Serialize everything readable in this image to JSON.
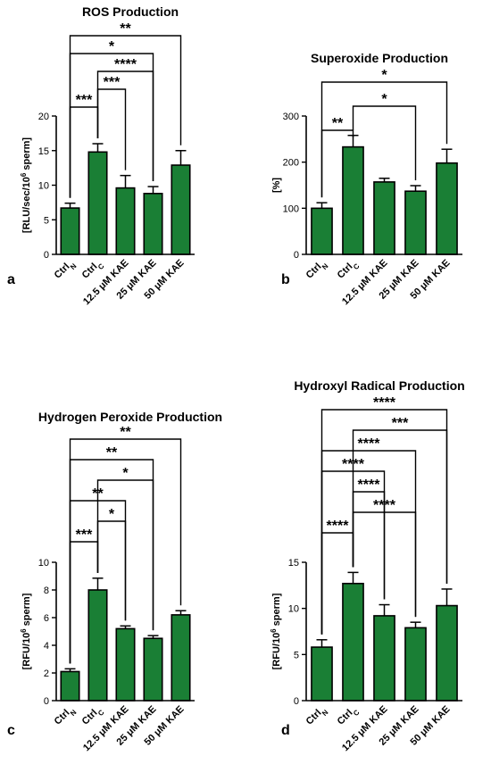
{
  "colors": {
    "bar": "#1a7f35",
    "axis": "#000000"
  },
  "chart_data": [
    {
      "panel_label": "a",
      "type": "bar",
      "title": "ROS Production",
      "ylabel": {
        "main": "[RLU/sec/10",
        "sup": "6",
        "tail": " sperm]"
      },
      "categories": [
        {
          "main": "Ctrl",
          "sub": "N"
        },
        {
          "main": "Ctrl",
          "sub": "C"
        },
        {
          "main": "12.5 μM KAE",
          "sub": ""
        },
        {
          "main": "25 μM KAE",
          "sub": ""
        },
        {
          "main": "50 μM KAE",
          "sub": ""
        }
      ],
      "values": [
        6.7,
        14.8,
        9.6,
        8.8,
        12.9
      ],
      "errors": [
        0.7,
        1.2,
        1.8,
        1.0,
        2.1
      ],
      "ylim": [
        0,
        20
      ],
      "yticks": [
        "0",
        "5",
        "10",
        "15",
        "20"
      ],
      "significance": [
        {
          "from": 0,
          "to": 1,
          "label": "***"
        },
        {
          "from": 1,
          "to": 2,
          "label": "***"
        },
        {
          "from": 1,
          "to": 3,
          "label": "****"
        },
        {
          "from": 0,
          "to": 3,
          "label": "*"
        },
        {
          "from": 0,
          "to": 4,
          "label": "**"
        }
      ]
    },
    {
      "panel_label": "b",
      "type": "bar",
      "title": "Superoxide Production",
      "ylabel": {
        "main": "[%]",
        "sup": "",
        "tail": ""
      },
      "categories": [
        {
          "main": "Ctrl",
          "sub": "N"
        },
        {
          "main": "Ctrl",
          "sub": "C"
        },
        {
          "main": "12.5 μM KAE",
          "sub": ""
        },
        {
          "main": "25 μM KAE",
          "sub": ""
        },
        {
          "main": "50 μM KAE",
          "sub": ""
        }
      ],
      "values": [
        100,
        233,
        157,
        137,
        198
      ],
      "errors": [
        12,
        25,
        8,
        12,
        30
      ],
      "ylim": [
        0,
        300
      ],
      "yticks": [
        "0",
        "100",
        "200",
        "300"
      ],
      "significance": [
        {
          "from": 0,
          "to": 1,
          "label": "**"
        },
        {
          "from": 1,
          "to": 3,
          "label": "*"
        },
        {
          "from": 0,
          "to": 4,
          "label": "*"
        }
      ]
    },
    {
      "panel_label": "c",
      "type": "bar",
      "title": "Hydrogen Peroxide Production",
      "ylabel": {
        "main": "[RFU/10",
        "sup": "6",
        "tail": " sperm]"
      },
      "categories": [
        {
          "main": "Ctrl",
          "sub": "N"
        },
        {
          "main": "Ctrl",
          "sub": "C"
        },
        {
          "main": "12.5 μM KAE",
          "sub": ""
        },
        {
          "main": "25 μM KAE",
          "sub": ""
        },
        {
          "main": "50 μM KAE",
          "sub": ""
        }
      ],
      "values": [
        2.1,
        8.0,
        5.2,
        4.5,
        6.2
      ],
      "errors": [
        0.2,
        0.85,
        0.2,
        0.2,
        0.3
      ],
      "ylim": [
        0,
        10
      ],
      "yticks": [
        "0",
        "2",
        "4",
        "6",
        "8",
        "10"
      ],
      "significance": [
        {
          "from": 0,
          "to": 1,
          "label": "***"
        },
        {
          "from": 1,
          "to": 2,
          "label": "*"
        },
        {
          "from": 0,
          "to": 2,
          "label": "**"
        },
        {
          "from": 1,
          "to": 3,
          "label": "*"
        },
        {
          "from": 0,
          "to": 3,
          "label": "**"
        },
        {
          "from": 0,
          "to": 4,
          "label": "**"
        }
      ]
    },
    {
      "panel_label": "d",
      "type": "bar",
      "title": "Hydroxyl Radical Production",
      "ylabel": {
        "main": "[RFU/10",
        "sup": "6",
        "tail": " sperm]"
      },
      "categories": [
        {
          "main": "Ctrl",
          "sub": "N"
        },
        {
          "main": "Ctrl",
          "sub": "C"
        },
        {
          "main": "12.5 μM KAE",
          "sub": ""
        },
        {
          "main": "25 μM KAE",
          "sub": ""
        },
        {
          "main": "50 μM KAE",
          "sub": ""
        }
      ],
      "values": [
        5.8,
        12.7,
        9.2,
        7.9,
        10.3
      ],
      "errors": [
        0.8,
        1.2,
        1.2,
        0.6,
        1.8
      ],
      "ylim": [
        0,
        15
      ],
      "yticks": [
        "0",
        "5",
        "10",
        "15"
      ],
      "significance": [
        {
          "from": 0,
          "to": 1,
          "label": "****"
        },
        {
          "from": 1,
          "to": 3,
          "label": "****"
        },
        {
          "from": 1,
          "to": 2,
          "label": "****"
        },
        {
          "from": 0,
          "to": 2,
          "label": "****"
        },
        {
          "from": 0,
          "to": 3,
          "label": "****"
        },
        {
          "from": 1,
          "to": 4,
          "label": "***"
        },
        {
          "from": 0,
          "to": 4,
          "label": "****"
        }
      ]
    }
  ]
}
